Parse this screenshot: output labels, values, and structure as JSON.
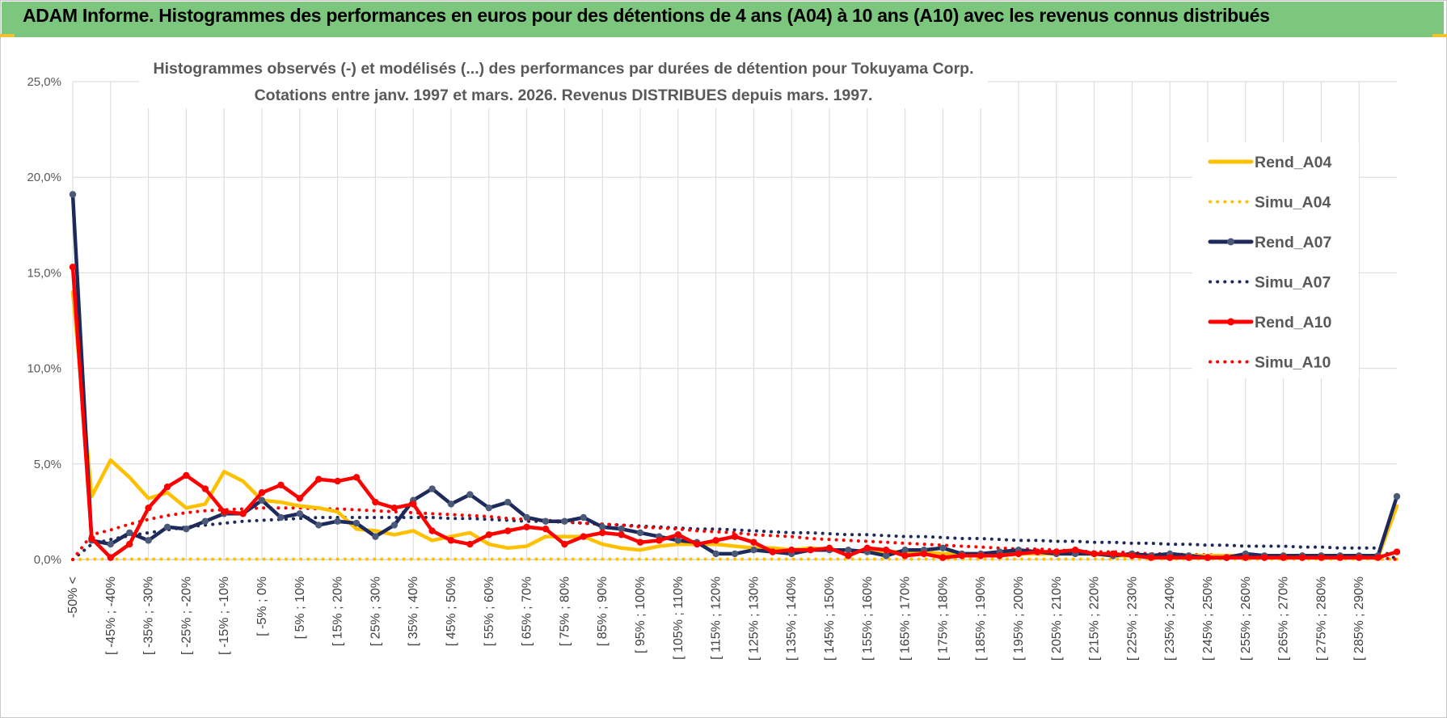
{
  "header": {
    "banner_title": "ADAM Informe. Histogrammes des performances en euros pour des détentions de 4 ans (A04) à 10 ans (A10) avec les revenus connus distribués"
  },
  "chart_data": {
    "type": "line",
    "title": "Histogrammes observés (-) et modélisés (...) des performances par durées de détention pour Tokuyama Corp.",
    "subtitle": "Cotations entre janv. 1997 et mars. 2026.  Revenus DISTRIBUES depuis mars. 1997.",
    "xlabel": "",
    "ylabel": "",
    "ylim": [
      0,
      25
    ],
    "yticks": [
      "0,0%",
      "5,0%",
      "10,0%",
      "15,0%",
      "20,0%",
      "25,0%"
    ],
    "grid": true,
    "legend_position": "right",
    "tick_labels": [
      "-50% <",
      "[ -45% ; -40%",
      "[ -35% ; -30%",
      "[ -25% ; -20%",
      "[ -15% ; -10%",
      "[ -5% ; 0%",
      "[ 5% ; 10%",
      "[ 15% ; 20%",
      "[ 25% ; 30%",
      "[ 35% ; 40%",
      "[ 45% ; 50%",
      "[ 55% ; 60%",
      "[ 65% ; 70%",
      "[ 75% ; 80%",
      "[ 85% ; 90%",
      "[ 95% ; 100%",
      "[ 105% ; 110%",
      "[ 115% ; 120%",
      "[ 125% ; 130%",
      "[ 135% ; 140%",
      "[ 145% ; 150%",
      "[ 155% ; 160%",
      "[ 165% ; 170%",
      "[ 175% ; 180%",
      "[ 185% ; 190%",
      "[ 195% ; 200%",
      "[ 205% ; 210%",
      "[ 215% ; 220%",
      "[ 225% ; 230%",
      "[ 235% ; 240%",
      "[ 245% ; 250%",
      "[ 255% ; 260%",
      "[ 265% ; 270%",
      "[ 275% ; 280%",
      "[ 285% ; 290%"
    ],
    "series": [
      {
        "name": "Rend_A04",
        "style": "solid",
        "color": "#FFC000",
        "values": [
          14.0,
          3.3,
          5.2,
          4.3,
          3.2,
          3.5,
          2.7,
          2.9,
          4.6,
          4.1,
          3.1,
          3.0,
          2.8,
          2.7,
          2.5,
          1.6,
          1.5,
          1.3,
          1.5,
          1.0,
          1.2,
          1.4,
          0.8,
          0.6,
          0.7,
          1.2,
          1.2,
          1.2,
          0.8,
          0.6,
          0.5,
          0.7,
          0.8,
          0.8,
          0.8,
          0.7,
          0.6,
          0.6,
          0.5,
          0.6,
          0.5,
          0.5,
          0.4,
          0.4,
          0.4,
          0.4,
          0.3,
          0.3,
          0.3,
          0.3,
          0.3,
          0.3,
          0.3,
          0.3,
          0.3,
          0.2,
          0.2,
          0.2,
          0.2,
          0.2,
          0.2,
          0.2,
          0.2,
          0.1,
          0.1,
          0.1,
          0.1,
          0.1,
          0.1,
          0.1,
          2.8
        ]
      },
      {
        "name": "Simu_A04",
        "style": "dotted",
        "color": "#FFC000",
        "values": [
          0.0,
          0.02,
          0.02,
          0.02,
          0.02,
          0.02,
          0.02,
          0.02,
          0.02,
          0.02,
          0.02,
          0.02,
          0.02,
          0.02,
          0.02,
          0.02,
          0.02,
          0.02,
          0.02,
          0.02,
          0.02,
          0.02,
          0.02,
          0.02,
          0.02,
          0.02,
          0.02,
          0.02,
          0.02,
          0.02,
          0.02,
          0.02,
          0.02,
          0.02,
          0.02,
          0.02,
          0.02,
          0.02,
          0.02,
          0.02,
          0.02,
          0.02,
          0.02,
          0.02,
          0.02,
          0.02,
          0.02,
          0.02,
          0.02,
          0.02,
          0.02,
          0.02,
          0.02,
          0.02,
          0.02,
          0.02,
          0.02,
          0.02,
          0.02,
          0.02,
          0.02,
          0.02,
          0.02,
          0.02,
          0.02,
          0.02,
          0.02,
          0.02,
          0.02,
          0.02,
          0.02
        ]
      },
      {
        "name": "Rend_A07",
        "style": "solid-markers",
        "color": "#1F2A5C",
        "values": [
          19.1,
          1.0,
          0.8,
          1.4,
          1.0,
          1.7,
          1.6,
          2.0,
          2.4,
          2.4,
          3.1,
          2.2,
          2.4,
          1.8,
          2.0,
          1.9,
          1.2,
          1.8,
          3.1,
          3.7,
          2.9,
          3.4,
          2.7,
          3.0,
          2.2,
          2.0,
          2.0,
          2.2,
          1.7,
          1.6,
          1.4,
          1.2,
          1.0,
          0.9,
          0.3,
          0.3,
          0.5,
          0.4,
          0.3,
          0.5,
          0.5,
          0.5,
          0.4,
          0.2,
          0.5,
          0.5,
          0.6,
          0.3,
          0.3,
          0.4,
          0.5,
          0.4,
          0.3,
          0.3,
          0.3,
          0.2,
          0.3,
          0.2,
          0.3,
          0.2,
          0.1,
          0.1,
          0.3,
          0.2,
          0.2,
          0.2,
          0.2,
          0.2,
          0.2,
          0.2,
          3.3
        ]
      },
      {
        "name": "Simu_A07",
        "style": "dotted",
        "color": "#1F2A5C",
        "values": [
          0.0,
          0.8,
          1.05,
          1.25,
          1.4,
          1.55,
          1.7,
          1.8,
          1.9,
          2.0,
          2.05,
          2.1,
          2.15,
          2.2,
          2.2,
          2.2,
          2.2,
          2.2,
          2.2,
          2.2,
          2.15,
          2.15,
          2.1,
          2.05,
          2.0,
          2.0,
          1.95,
          1.9,
          1.85,
          1.8,
          1.75,
          1.7,
          1.65,
          1.6,
          1.6,
          1.55,
          1.5,
          1.45,
          1.4,
          1.4,
          1.35,
          1.3,
          1.3,
          1.25,
          1.2,
          1.2,
          1.15,
          1.1,
          1.1,
          1.05,
          1.0,
          1.0,
          0.95,
          0.95,
          0.9,
          0.9,
          0.85,
          0.85,
          0.8,
          0.8,
          0.75,
          0.75,
          0.7,
          0.7,
          0.7,
          0.65,
          0.65,
          0.6,
          0.6,
          0.6,
          0.0
        ]
      },
      {
        "name": "Rend_A10",
        "style": "solid-markers",
        "color": "#FF0000",
        "values": [
          15.3,
          1.1,
          0.1,
          0.8,
          2.7,
          3.8,
          4.4,
          3.7,
          2.5,
          2.4,
          3.5,
          3.9,
          3.2,
          4.2,
          4.1,
          4.3,
          3.0,
          2.7,
          2.9,
          1.5,
          1.0,
          0.8,
          1.3,
          1.5,
          1.7,
          1.6,
          0.8,
          1.2,
          1.4,
          1.3,
          0.9,
          1.0,
          1.3,
          0.8,
          1.0,
          1.2,
          0.9,
          0.4,
          0.5,
          0.5,
          0.6,
          0.2,
          0.6,
          0.5,
          0.2,
          0.3,
          0.1,
          0.2,
          0.2,
          0.2,
          0.3,
          0.4,
          0.4,
          0.5,
          0.3,
          0.3,
          0.2,
          0.1,
          0.1,
          0.1,
          0.1,
          0.1,
          0.1,
          0.1,
          0.1,
          0.1,
          0.1,
          0.1,
          0.1,
          0.1,
          0.4
        ]
      },
      {
        "name": "Simu_A10",
        "style": "dotted",
        "color": "#FF0000",
        "values": [
          0.0,
          1.3,
          1.55,
          1.85,
          2.1,
          2.3,
          2.45,
          2.55,
          2.6,
          2.65,
          2.7,
          2.7,
          2.7,
          2.65,
          2.65,
          2.6,
          2.55,
          2.5,
          2.45,
          2.4,
          2.35,
          2.3,
          2.25,
          2.15,
          2.1,
          2.05,
          2.0,
          1.9,
          1.85,
          1.8,
          1.7,
          1.65,
          1.6,
          1.5,
          1.45,
          1.4,
          1.3,
          1.25,
          1.2,
          1.1,
          1.05,
          1.0,
          0.95,
          0.9,
          0.85,
          0.8,
          0.75,
          0.7,
          0.65,
          0.6,
          0.55,
          0.55,
          0.5,
          0.45,
          0.4,
          0.4,
          0.35,
          0.3,
          0.3,
          0.25,
          0.25,
          0.2,
          0.2,
          0.2,
          0.15,
          0.15,
          0.15,
          0.1,
          0.1,
          0.1,
          0.0
        ]
      }
    ]
  }
}
